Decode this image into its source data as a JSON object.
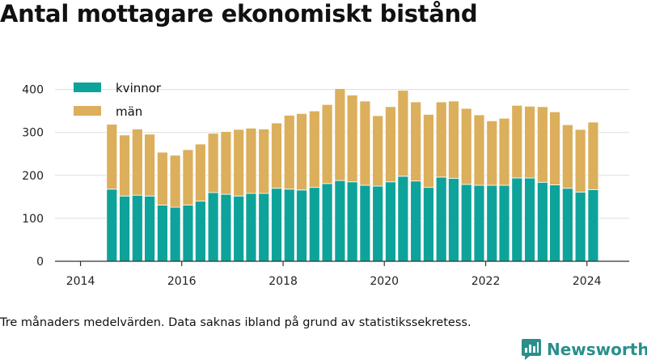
{
  "title": "Antal mottagare ekonomiskt bistånd",
  "caption": "Tre månaders medelvärden. Data saknas ibland på grund av statistikssekretess.",
  "brand": {
    "name": "Newsworthy",
    "color": "#2a8f8b",
    "icon": "newsworthy-logo-icon"
  },
  "colors": {
    "kvinnor": "#0ea39a",
    "man": "#dbaf5c",
    "grid": "#dddddd",
    "axis": "#333333"
  },
  "chart_data": {
    "type": "bar",
    "stacked": true,
    "x": [
      "2014-08",
      "2014-11",
      "2015-02",
      "2015-05",
      "2015-08",
      "2015-11",
      "2016-02",
      "2016-05",
      "2016-08",
      "2016-11",
      "2017-02",
      "2017-05",
      "2017-08",
      "2017-11",
      "2018-02",
      "2018-05",
      "2018-08",
      "2018-11",
      "2019-02",
      "2019-05",
      "2019-08",
      "2019-11",
      "2020-02",
      "2020-05",
      "2020-08",
      "2020-11",
      "2021-02",
      "2021-05",
      "2021-08",
      "2021-11",
      "2022-02",
      "2022-05",
      "2022-08",
      "2022-11",
      "2023-02",
      "2023-05",
      "2023-08",
      "2023-11",
      "2024-02"
    ],
    "series": [
      {
        "name": "kvinnor",
        "color": "#0ea39a",
        "values": [
          168,
          152,
          154,
          152,
          131,
          126,
          131,
          140,
          160,
          156,
          152,
          158,
          158,
          170,
          168,
          166,
          172,
          181,
          188,
          185,
          177,
          175,
          185,
          198,
          187,
          172,
          196,
          193,
          179,
          177,
          177,
          177,
          194,
          194,
          184,
          178,
          170,
          161,
          167
        ]
      },
      {
        "name": "män",
        "color": "#dbaf5c",
        "values": [
          151,
          142,
          154,
          144,
          123,
          121,
          129,
          133,
          138,
          146,
          155,
          152,
          150,
          152,
          172,
          178,
          178,
          184,
          214,
          202,
          196,
          164,
          175,
          200,
          184,
          170,
          175,
          180,
          177,
          164,
          150,
          156,
          169,
          167,
          176,
          170,
          148,
          146,
          157
        ]
      }
    ],
    "x_ticks": [
      "2014",
      "2016",
      "2018",
      "2020",
      "2022",
      "2024"
    ],
    "y_ticks": [
      0,
      100,
      200,
      300,
      400
    ],
    "xlim": [
      "2013-07-01",
      "2024-11-01"
    ],
    "ylim": [
      0,
      420
    ],
    "grid": "horizontal",
    "legend_position": "top-left"
  }
}
